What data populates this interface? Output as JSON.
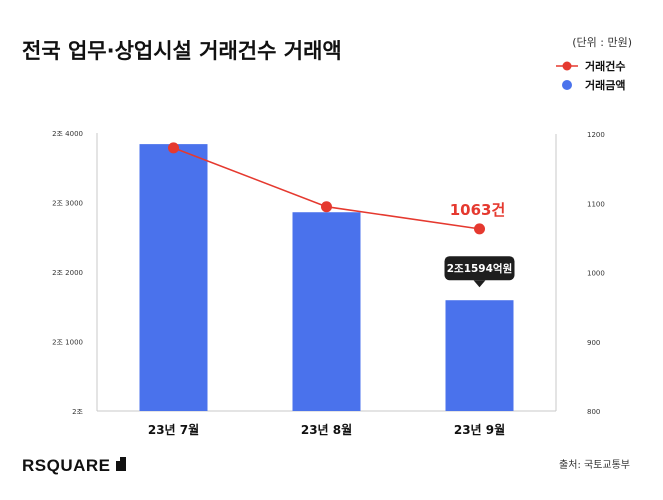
{
  "chart_data": {
    "type": "bar+line",
    "title": "전국 업무·상업시설 거래건수 거래액",
    "unit_label": "(단위 : 만원)",
    "categories": [
      "23년 7월",
      "23년 8월",
      "23년 9월"
    ],
    "legend": [
      {
        "name": "거래건수",
        "color": "#e5392f",
        "marker": "line-dot"
      },
      {
        "name": "거래금액",
        "color": "#4a72ec",
        "marker": "dot"
      }
    ],
    "left_axis": {
      "ticks": [
        {
          "value": 20000,
          "label": "2조"
        },
        {
          "value": 21000,
          "label": "2조 1000"
        },
        {
          "value": 22000,
          "label": "2조 2000"
        },
        {
          "value": 23000,
          "label": "2조 3000"
        },
        {
          "value": 24000,
          "label": "2조 4000"
        }
      ],
      "range": [
        20000,
        24000
      ],
      "unit": "억원"
    },
    "right_axis": {
      "ticks": [
        {
          "value": 800,
          "label": "800"
        },
        {
          "value": 900,
          "label": "900"
        },
        {
          "value": 1000,
          "label": "1000"
        },
        {
          "value": 1100,
          "label": "1100"
        },
        {
          "value": 1200,
          "label": "1200"
        }
      ],
      "range": [
        800,
        1200
      ]
    },
    "series": [
      {
        "name": "거래금액",
        "type": "bar",
        "axis": "left",
        "values": [
          23840,
          22860,
          21594
        ]
      },
      {
        "name": "거래건수",
        "type": "line",
        "axis": "right",
        "values": [
          1180,
          1095,
          1063
        ]
      }
    ],
    "annotations": [
      {
        "target": "거래건수",
        "index": 2,
        "text": "1063건",
        "color": "#e5392f"
      },
      {
        "target": "거래금액",
        "index": 2,
        "text": "2조1594억원",
        "style": "callout-dark"
      }
    ],
    "grid": false
  },
  "footer": {
    "brand": "RSQUARE",
    "source": "출처: 국토교통부"
  },
  "colors": {
    "bar": "#4a72ec",
    "line": "#e5392f",
    "axis_line": "#c8c8c8",
    "text": "#222222",
    "callout_bg": "#1e1e1e"
  }
}
